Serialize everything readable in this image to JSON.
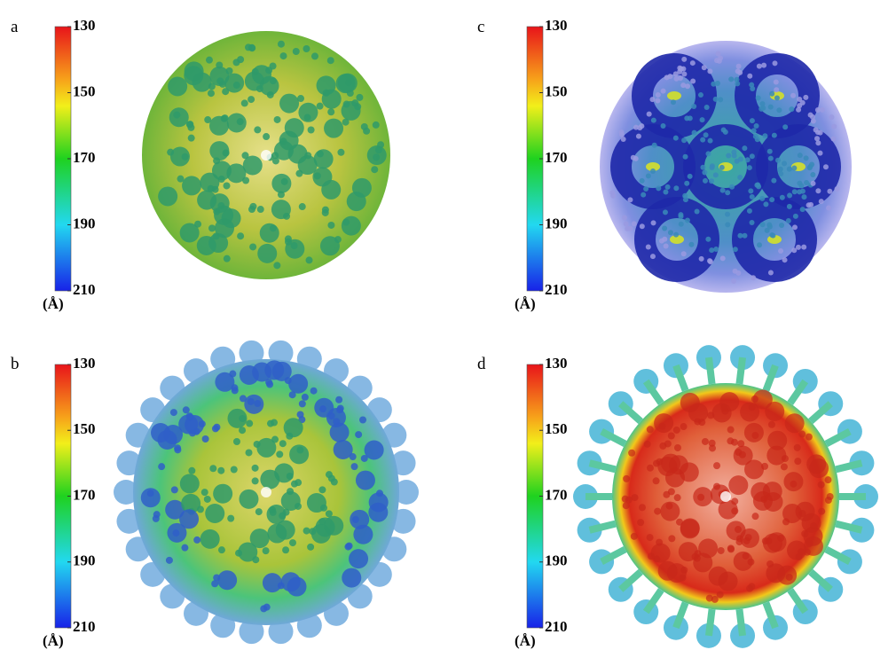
{
  "panels": [
    {
      "label": "a",
      "colorbar": {
        "ticks": [
          130,
          150,
          170,
          190,
          210
        ],
        "unit": "(Å)"
      }
    },
    {
      "label": "b",
      "colorbar": {
        "ticks": [
          130,
          150,
          170,
          190,
          210
        ],
        "unit": "(Å)"
      }
    },
    {
      "label": "c",
      "colorbar": {
        "ticks": [
          130,
          150,
          170,
          190,
          210
        ],
        "unit": "(Å)"
      }
    },
    {
      "label": "d",
      "colorbar": {
        "ticks": [
          130,
          150,
          170,
          190,
          210
        ],
        "unit": "(Å)"
      }
    }
  ]
}
